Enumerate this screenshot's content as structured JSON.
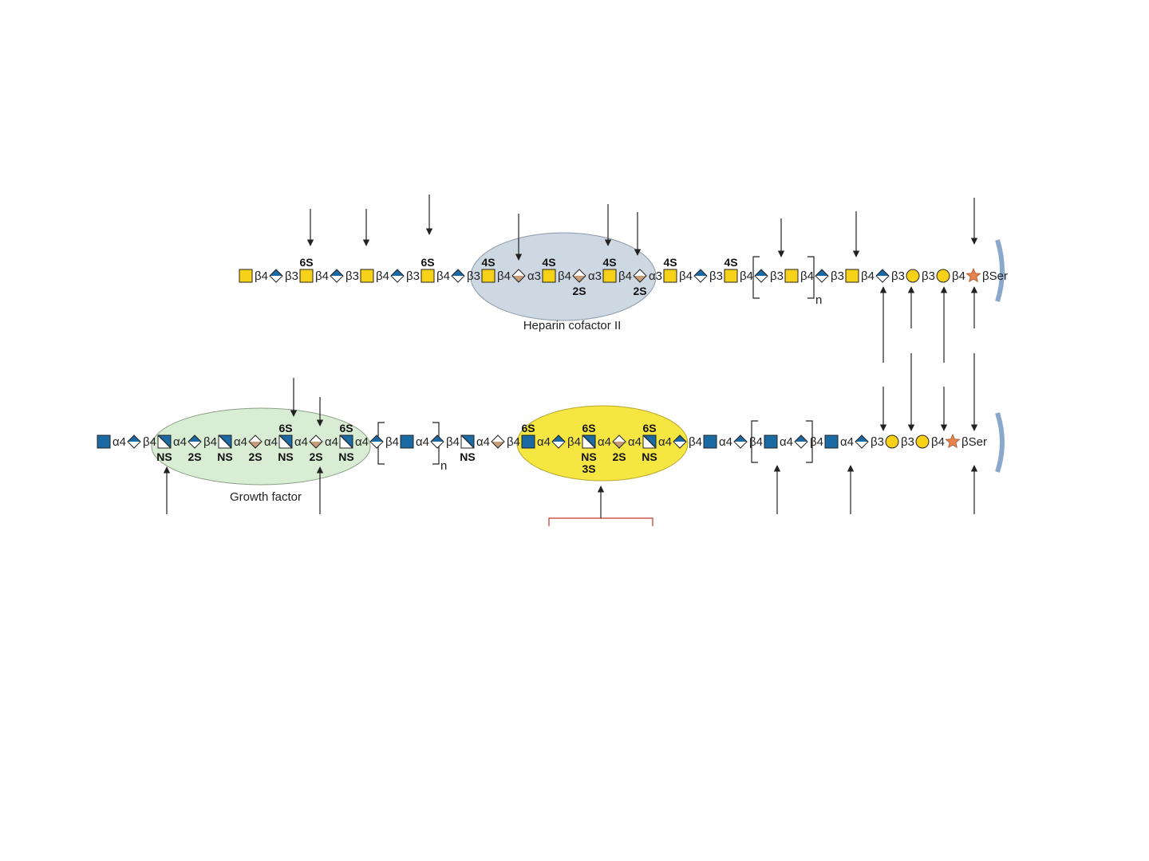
{
  "colors": {
    "yellow": "#f7d117",
    "blue": "#1b6aa3",
    "tan": "#c79d77",
    "orange": "#e8834e",
    "gray_ellipse": "#cdd8e3",
    "green_ellipse": "#d9ecd4",
    "yellow_ellipse": "#f6e642",
    "membrane": "#8aa8cc",
    "red_box": "#c0392b"
  },
  "chondroitin_chain": {
    "units": [
      {
        "symbol": "yellow-square",
        "link": "β4"
      },
      {
        "symbol": "blue-white-diamond",
        "link": "β3"
      },
      {
        "symbol": "yellow-square",
        "link": "β4",
        "top": "6S"
      },
      {
        "symbol": "blue-white-diamond",
        "link": "β3"
      },
      {
        "symbol": "yellow-square",
        "link": "β4"
      },
      {
        "symbol": "blue-white-diamond",
        "link": "β3"
      },
      {
        "symbol": "yellow-square",
        "link": "β4",
        "top": "6S"
      },
      {
        "symbol": "blue-white-diamond",
        "link": "β3"
      },
      {
        "symbol": "yellow-square",
        "link": "β4",
        "top": "4S"
      },
      {
        "symbol": "tan-white-diamond",
        "link": "α3"
      },
      {
        "symbol": "yellow-square",
        "link": "β4",
        "top": "4S"
      },
      {
        "symbol": "tan-white-diamond",
        "link": "α3",
        "bottom": "2S"
      },
      {
        "symbol": "yellow-square",
        "link": "β4",
        "top": "4S"
      },
      {
        "symbol": "tan-white-diamond",
        "link": "α3",
        "bottom": "2S"
      },
      {
        "symbol": "yellow-square",
        "link": "β4",
        "top": "4S"
      },
      {
        "symbol": "blue-white-diamond",
        "link": "β3"
      },
      {
        "symbol": "yellow-square",
        "link": "β4",
        "top": "4S"
      },
      {
        "symbol": "blue-white-diamond",
        "link": "β3"
      },
      {
        "symbol": "yellow-square",
        "link": "β4"
      },
      {
        "symbol": "blue-white-diamond",
        "link": "β3"
      },
      {
        "symbol": "yellow-square",
        "link": "β4"
      },
      {
        "symbol": "blue-white-diamond",
        "link": "β3"
      },
      {
        "symbol": "yellow-circle",
        "link": "β3"
      },
      {
        "symbol": "yellow-circle",
        "link": "β4"
      },
      {
        "symbol": "orange-star",
        "link": "βSer"
      }
    ],
    "repeat_label": "n",
    "binding_label": "Heparin cofactor II"
  },
  "heparan_chain": {
    "units": [
      {
        "symbol": "blue-square",
        "link": "α4"
      },
      {
        "symbol": "blue-white-diamond",
        "link": "β4"
      },
      {
        "symbol": "blue-white-split-square",
        "link": "α4",
        "bottom": "NS"
      },
      {
        "symbol": "blue-white-diamond",
        "link": "β4",
        "bottom": "2S"
      },
      {
        "symbol": "blue-white-split-square",
        "link": "α4",
        "bottom": "NS"
      },
      {
        "symbol": "tan-white-diamond",
        "link": "α4",
        "bottom": "2S"
      },
      {
        "symbol": "blue-white-split-square",
        "link": "α4",
        "top": "6S",
        "bottom": "NS"
      },
      {
        "symbol": "tan-white-diamond",
        "link": "α4",
        "bottom": "2S"
      },
      {
        "symbol": "blue-white-split-square",
        "link": "α4",
        "top": "6S",
        "bottom": "NS"
      },
      {
        "symbol": "blue-white-diamond",
        "link": "β4"
      },
      {
        "symbol": "blue-square",
        "link": "α4"
      },
      {
        "symbol": "blue-white-diamond",
        "link": "β4"
      },
      {
        "symbol": "blue-white-split-square",
        "link": "α4",
        "bottom": "NS"
      },
      {
        "symbol": "tan-white-diamond",
        "link": "β4"
      },
      {
        "symbol": "blue-square",
        "link": "α4",
        "top": "6S"
      },
      {
        "symbol": "blue-white-diamond",
        "link": "β4"
      },
      {
        "symbol": "blue-white-split-square",
        "link": "α4",
        "top": "6S",
        "bottom": "NS 3S"
      },
      {
        "symbol": "white-tan-diamond",
        "link": "α4",
        "bottom": "2S"
      },
      {
        "symbol": "blue-white-split-square",
        "link": "α4",
        "top": "6S",
        "bottom": "NS"
      },
      {
        "symbol": "blue-white-diamond",
        "link": "β4"
      },
      {
        "symbol": "blue-square",
        "link": "α4"
      },
      {
        "symbol": "blue-white-diamond",
        "link": "β4"
      },
      {
        "symbol": "blue-square",
        "link": "α4"
      },
      {
        "symbol": "blue-white-diamond",
        "link": "β4"
      },
      {
        "symbol": "blue-square",
        "link": "α4"
      },
      {
        "symbol": "blue-white-diamond",
        "link": "β3"
      },
      {
        "symbol": "yellow-circle",
        "link": "β3"
      },
      {
        "symbol": "yellow-circle",
        "link": "β4"
      },
      {
        "symbol": "orange-star",
        "link": "βSer"
      }
    ],
    "repeat_label": "n",
    "binding_label": "Growth factor"
  }
}
